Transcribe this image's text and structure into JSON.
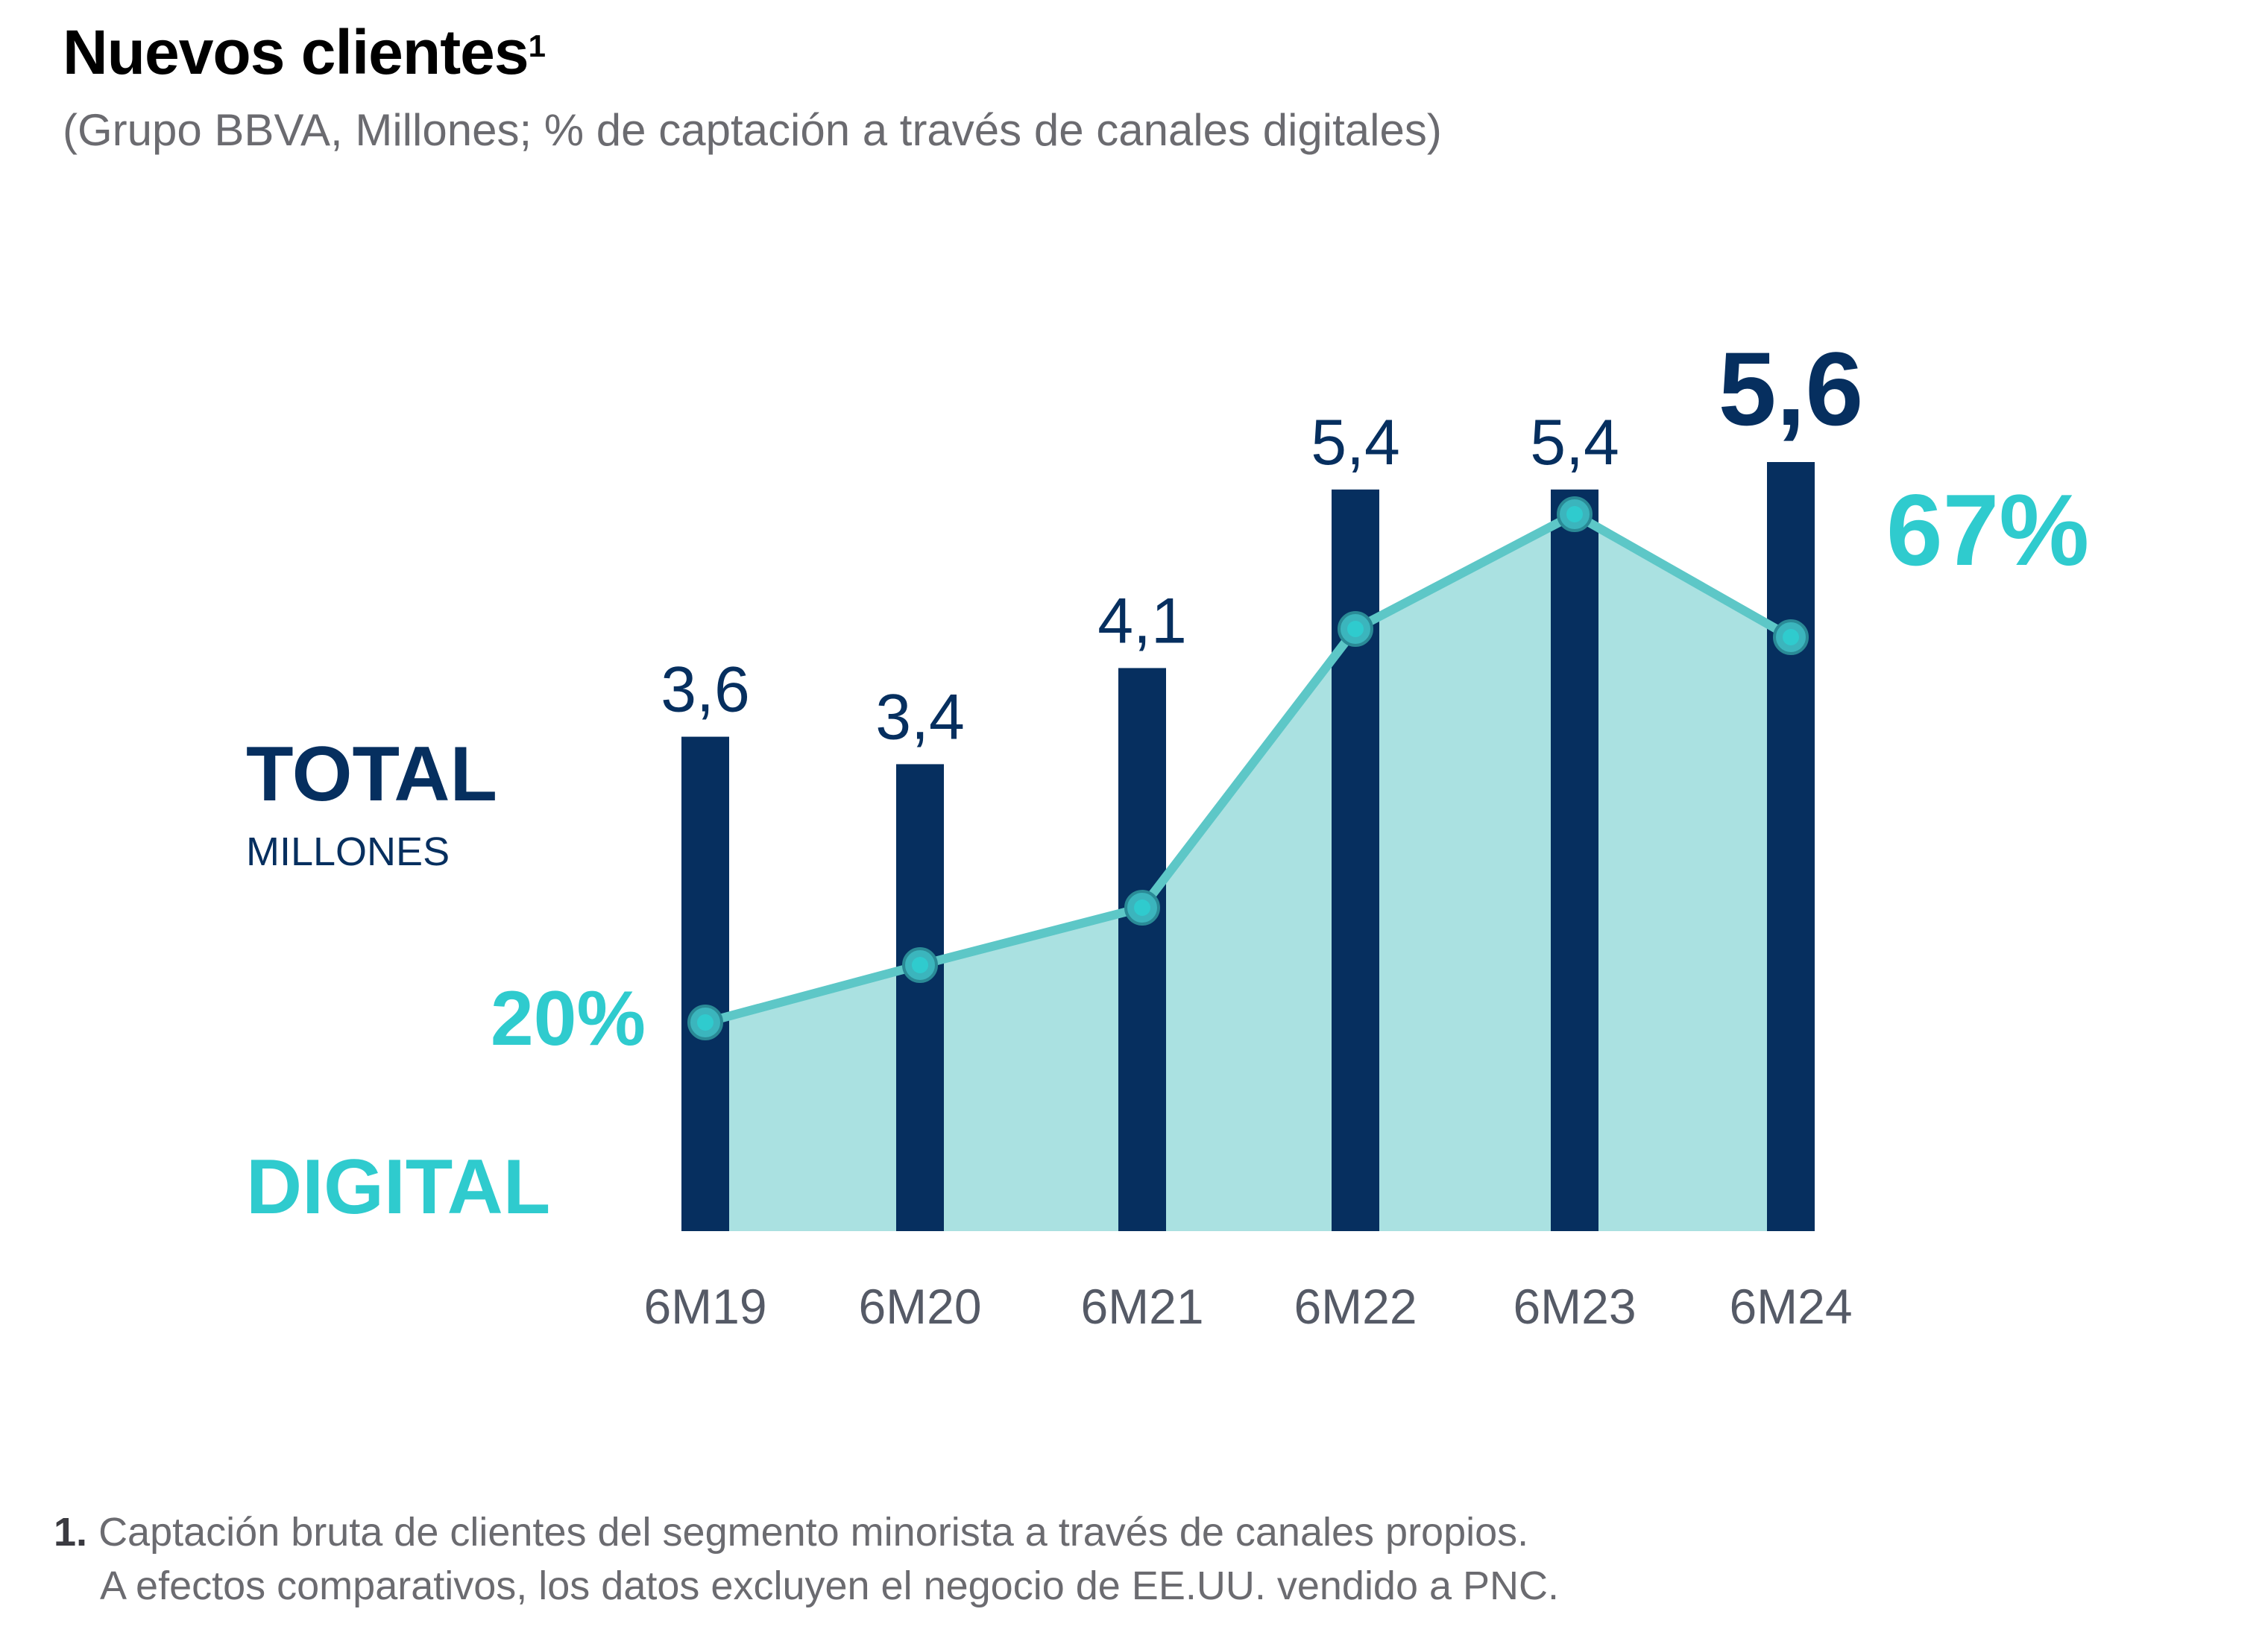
{
  "header": {
    "title": "Nuevos clientes",
    "title_sup": "1",
    "subtitle": "(Grupo BBVA, Millones; % de captación a través de canales digitales)"
  },
  "labels": {
    "total": "TOTAL",
    "millones": "MILLONES",
    "digital": "DIGITAL"
  },
  "chart_data": {
    "type": "bar",
    "categories": [
      "6M19",
      "6M20",
      "6M21",
      "6M22",
      "6M23",
      "6M24"
    ],
    "series": [
      {
        "name": "TOTAL",
        "type": "bar",
        "values": [
          3.6,
          3.4,
          4.1,
          5.4,
          5.4,
          5.6
        ],
        "value_labels": [
          "3,6",
          "3,4",
          "4,1",
          "5,4",
          "5,4",
          "5,6"
        ],
        "color": "#062f5f"
      },
      {
        "name": "DIGITAL",
        "type": "area",
        "values": [
          20,
          27,
          34,
          68,
          82,
          67
        ],
        "end_labels": [
          "20%",
          "67%"
        ],
        "color": "#2fcbce",
        "fill": "#aae1e1"
      }
    ],
    "ylim_bars": [
      0,
      5.6
    ]
  },
  "colors": {
    "bar": "#062f5f",
    "line": "#5dc7c7",
    "area": "#aae1e1",
    "accent": "#2fcbce",
    "axis_text": "#555a66"
  },
  "footnote": {
    "number": "1.",
    "line1": "Captación bruta de clientes del segmento minorista a través de canales propios.",
    "line2": "A efectos comparativos, los datos excluyen el negocio de EE.UU. vendido a PNC."
  }
}
